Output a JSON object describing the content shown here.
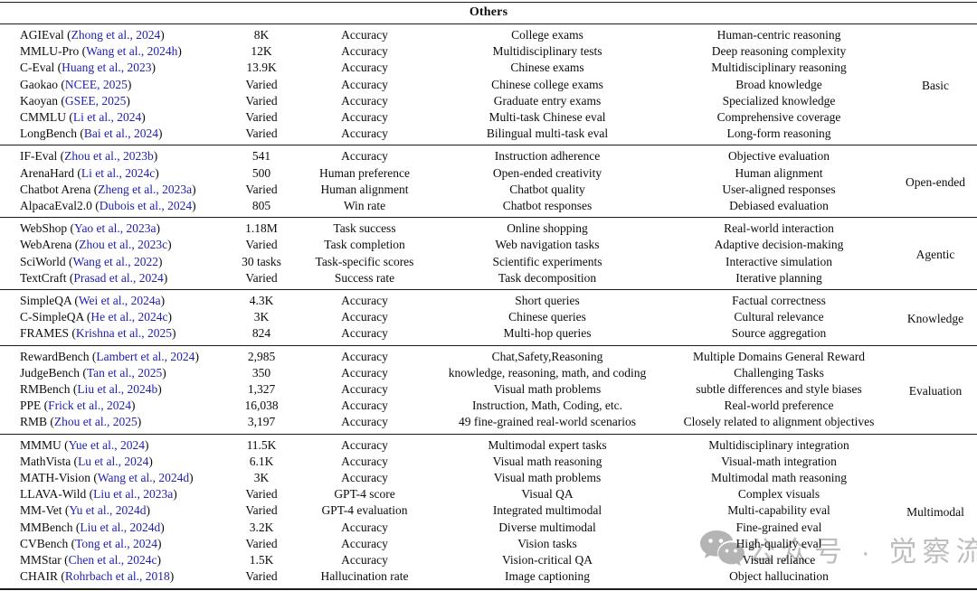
{
  "header": {
    "title": "Others"
  },
  "watermark": {
    "icon": "wechat-icon",
    "text": "公众号 · 觉察流"
  },
  "table": {
    "sections": [
      {
        "category": "Basic",
        "rows": [
          {
            "name": "AGIEval",
            "cite": "Zhong et al., 2024",
            "size": "8K",
            "metric": "Accuracy",
            "domain": "College exams",
            "focus": "Human-centric reasoning"
          },
          {
            "name": "MMLU-Pro",
            "cite": "Wang et al., 2024h",
            "size": "12K",
            "metric": "Accuracy",
            "domain": "Multidisciplinary tests",
            "focus": "Deep reasoning complexity"
          },
          {
            "name": "C-Eval",
            "cite": "Huang et al., 2023",
            "size": "13.9K",
            "metric": "Accuracy",
            "domain": "Chinese exams",
            "focus": "Multidisciplinary reasoning"
          },
          {
            "name": "Gaokao",
            "cite": "NCEE, 2025",
            "size": "Varied",
            "metric": "Accuracy",
            "domain": "Chinese college exams",
            "focus": "Broad knowledge"
          },
          {
            "name": "Kaoyan",
            "cite": "GSEE, 2025",
            "size": "Varied",
            "metric": "Accuracy",
            "domain": "Graduate entry exams",
            "focus": "Specialized knowledge"
          },
          {
            "name": "CMMLU",
            "cite": "Li et al., 2024",
            "size": "Varied",
            "metric": "Accuracy",
            "domain": "Multi-task Chinese eval",
            "focus": "Comprehensive coverage"
          },
          {
            "name": "LongBench",
            "cite": "Bai et al., 2024",
            "size": "Varied",
            "metric": "Accuracy",
            "domain": "Bilingual multi-task eval",
            "focus": "Long-form reasoning"
          }
        ]
      },
      {
        "category": "Open-ended",
        "rows": [
          {
            "name": "IF-Eval",
            "cite": "Zhou et al., 2023b",
            "size": "541",
            "metric": "Accuracy",
            "domain": "Instruction adherence",
            "focus": "Objective evaluation"
          },
          {
            "name": "ArenaHard",
            "cite": "Li et al., 2024c",
            "size": "500",
            "metric": "Human preference",
            "domain": "Open-ended creativity",
            "focus": "Human alignment"
          },
          {
            "name": "Chatbot Arena",
            "cite": "Zheng et al., 2023a",
            "size": "Varied",
            "metric": "Human alignment",
            "domain": "Chatbot quality",
            "focus": "User-aligned responses"
          },
          {
            "name": "AlpacaEval2.0",
            "cite": "Dubois et al., 2024",
            "size": "805",
            "metric": "Win rate",
            "domain": "Chatbot responses",
            "focus": "Debiased evaluation"
          }
        ]
      },
      {
        "category": "Agentic",
        "rows": [
          {
            "name": "WebShop",
            "cite": "Yao et al., 2023a",
            "size": "1.18M",
            "metric": "Task success",
            "domain": "Online shopping",
            "focus": "Real-world interaction"
          },
          {
            "name": "WebArena",
            "cite": "Zhou et al., 2023c",
            "size": "Varied",
            "metric": "Task completion",
            "domain": "Web navigation tasks",
            "focus": "Adaptive decision-making"
          },
          {
            "name": "SciWorld",
            "cite": "Wang et al., 2022",
            "size": "30 tasks",
            "metric": "Task-specific scores",
            "domain": "Scientific experiments",
            "focus": "Interactive simulation"
          },
          {
            "name": "TextCraft",
            "cite": "Prasad et al., 2024",
            "size": "Varied",
            "metric": "Success rate",
            "domain": "Task decomposition",
            "focus": "Iterative planning"
          }
        ]
      },
      {
        "category": "Knowledge",
        "rows": [
          {
            "name": "SimpleQA",
            "cite": "Wei et al., 2024a",
            "size": "4.3K",
            "metric": "Accuracy",
            "domain": "Short queries",
            "focus": "Factual correctness"
          },
          {
            "name": "C-SimpleQA",
            "cite": "He et al., 2024c",
            "size": "3K",
            "metric": "Accuracy",
            "domain": "Chinese queries",
            "focus": "Cultural relevance"
          },
          {
            "name": "FRAMES",
            "cite": "Krishna et al., 2025",
            "size": "824",
            "metric": "Accuracy",
            "domain": "Multi-hop queries",
            "focus": "Source aggregation"
          }
        ]
      },
      {
        "category": "Evaluation",
        "rows": [
          {
            "name": "RewardBench",
            "cite": "Lambert et al., 2024",
            "size": "2,985",
            "metric": "Accuracy",
            "domain": "Chat,Safety,Reasoning",
            "focus": "Multiple Domains General Reward"
          },
          {
            "name": "JudgeBench",
            "cite": "Tan et al., 2025",
            "size": "350",
            "metric": "Accuracy",
            "domain": "knowledge, reasoning, math, and coding",
            "focus": "Challenging Tasks"
          },
          {
            "name": "RMBench",
            "cite": "Liu et al., 2024b",
            "size": "1,327",
            "metric": "Accuracy",
            "domain": "Visual math problems",
            "focus": "subtle differences and style biases"
          },
          {
            "name": "PPE",
            "cite": "Frick et al., 2024",
            "size": "16,038",
            "metric": "Accuracy",
            "domain": "Instruction, Math, Coding, etc.",
            "focus": "Real-world preference"
          },
          {
            "name": "RMB",
            "cite": "Zhou et al., 2025",
            "size": "3,197",
            "metric": "Accuracy",
            "domain": "49 fine-grained real-world scenarios",
            "focus": "Closely related to alignment objectives"
          }
        ]
      },
      {
        "category": "Multimodal",
        "rows": [
          {
            "name": "MMMU",
            "cite": "Yue et al., 2024",
            "size": "11.5K",
            "metric": "Accuracy",
            "domain": "Multimodal expert tasks",
            "focus": "Multidisciplinary integration"
          },
          {
            "name": "MathVista",
            "cite": "Lu et al., 2024",
            "size": "6.1K",
            "metric": "Accuracy",
            "domain": "Visual math reasoning",
            "focus": "Visual-math integration"
          },
          {
            "name": "MATH-Vision",
            "cite": "Wang et al., 2024d",
            "size": "3K",
            "metric": "Accuracy",
            "domain": "Visual math problems",
            "focus": "Multimodal math reasoning"
          },
          {
            "name": "LLAVA-Wild",
            "cite": "Liu et al., 2023a",
            "size": "Varied",
            "metric": "GPT-4 score",
            "domain": "Visual QA",
            "focus": "Complex visuals"
          },
          {
            "name": "MM-Vet",
            "cite": "Yu et al., 2024d",
            "size": "Varied",
            "metric": "GPT-4 evaluation",
            "domain": "Integrated multimodal",
            "focus": "Multi-capability eval"
          },
          {
            "name": "MMBench",
            "cite": "Liu et al., 2024d",
            "size": "3.2K",
            "metric": "Accuracy",
            "domain": "Diverse multimodal",
            "focus": "Fine-grained eval"
          },
          {
            "name": "CVBench",
            "cite": "Tong et al., 2024",
            "size": "Varied",
            "metric": "Accuracy",
            "domain": "Vision tasks",
            "focus": "High-quality eval"
          },
          {
            "name": "MMStar",
            "cite": "Chen et al., 2024c",
            "size": "1.5K",
            "metric": "Accuracy",
            "domain": "Vision-critical QA",
            "focus": "Visual reliance"
          },
          {
            "name": "CHAIR",
            "cite": "Rohrbach et al., 2018",
            "size": "Varied",
            "metric": "Hallucination rate",
            "domain": "Image captioning",
            "focus": "Object hallucination"
          }
        ]
      }
    ]
  }
}
